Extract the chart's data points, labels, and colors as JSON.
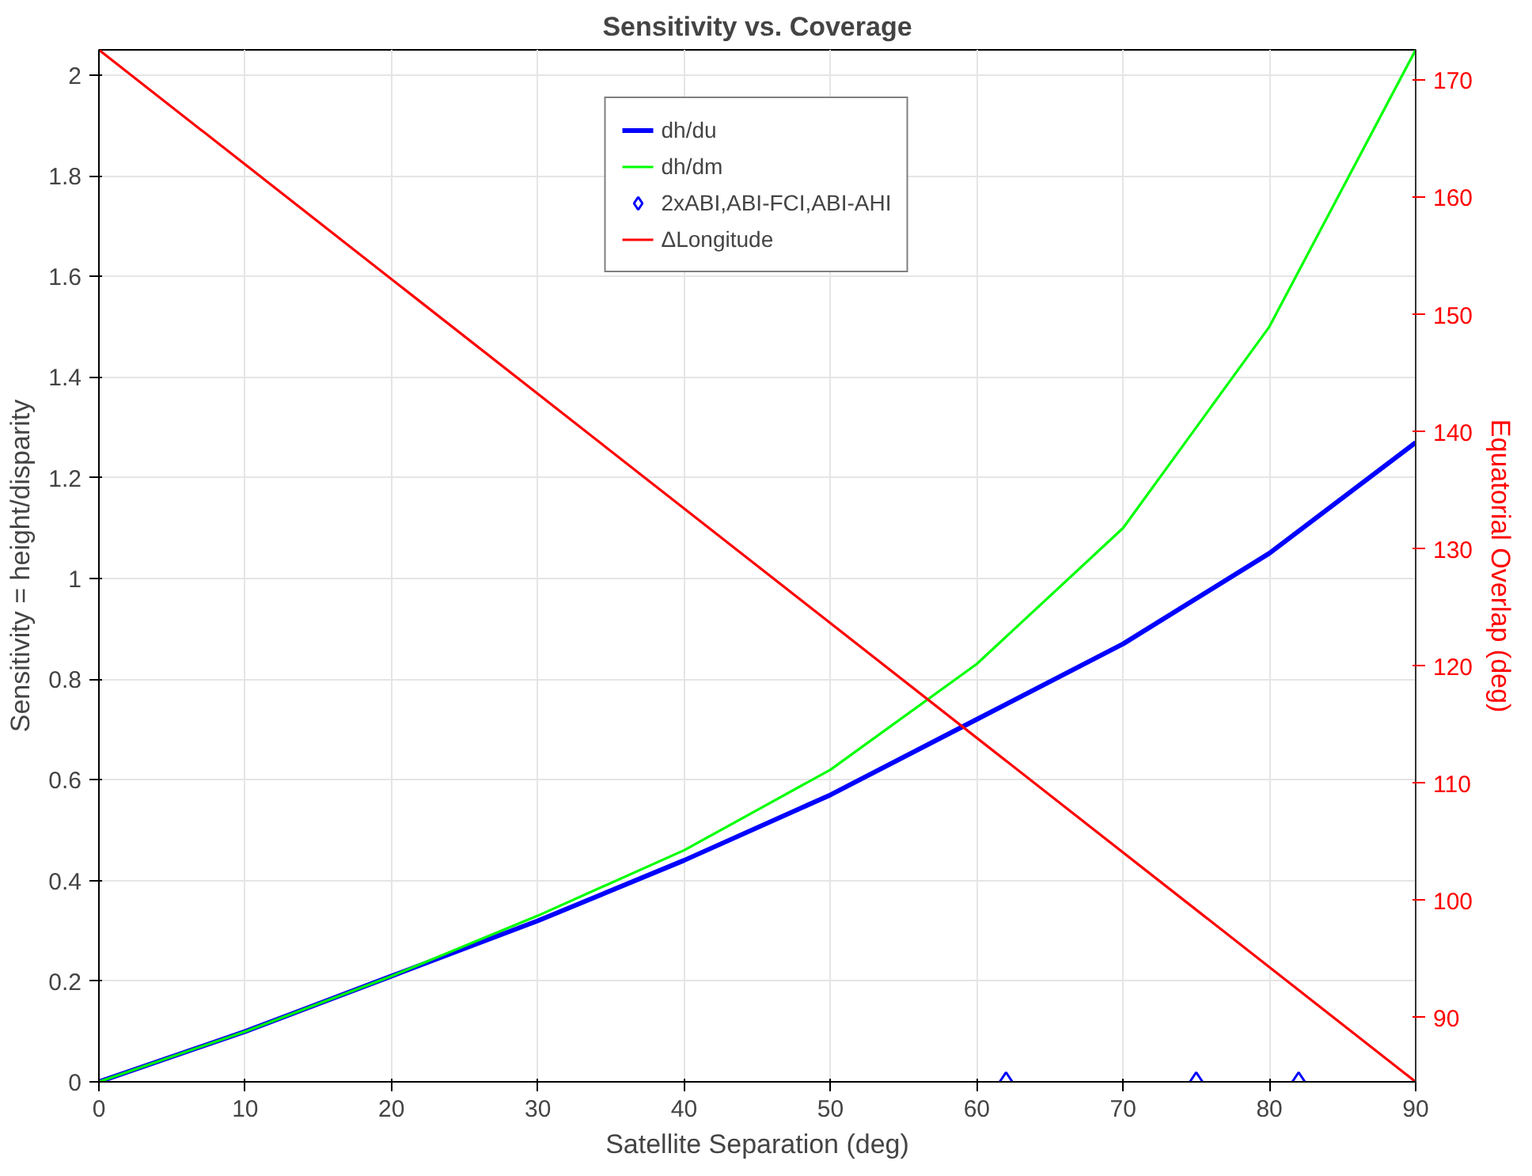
{
  "chart_data": {
    "type": "line",
    "title": "Sensitivity vs. Coverage",
    "xlabel": "Satellite Separation (deg)",
    "ylabel": "Sensitivity = height/disparity",
    "y2label": "Equatorial Overlap (deg)",
    "xlim": [
      0,
      90
    ],
    "xticks": [
      0,
      10,
      20,
      30,
      40,
      50,
      60,
      70,
      80,
      90
    ],
    "ylim": [
      0,
      2.05
    ],
    "yticks": [
      0,
      0.2,
      0.4,
      0.6,
      0.8,
      1,
      1.2,
      1.4,
      1.6,
      1.8,
      2
    ],
    "y2lim": [
      84.5,
      172.6
    ],
    "y2ticks": [
      90,
      100,
      110,
      120,
      130,
      140,
      150,
      160,
      170
    ],
    "grid": true,
    "legend": "top",
    "series": [
      {
        "name": "dh/du",
        "color": "#0000ff",
        "x": [
          0,
          10,
          20,
          30,
          40,
          50,
          60,
          70,
          80,
          90
        ],
        "values": [
          0,
          0.1,
          0.21,
          0.32,
          0.44,
          0.57,
          0.72,
          0.87,
          1.05,
          1.27
        ]
      },
      {
        "name": "dh/dm",
        "color": "#00ff00",
        "x": [
          0,
          10,
          20,
          30,
          40,
          50,
          60,
          70,
          80,
          90
        ],
        "values": [
          0,
          0.1,
          0.21,
          0.33,
          0.46,
          0.62,
          0.83,
          1.1,
          1.5,
          2.05
        ]
      },
      {
        "name": "2xABI,ABI-FCI,ABI-AHI",
        "color": "#0000ff",
        "type": "scatter",
        "marker": "diamond",
        "x": [
          62,
          75,
          82
        ],
        "values": [
          0,
          0,
          0
        ]
      },
      {
        "name": "ΔLongitude",
        "color": "#ff0000",
        "type": "line",
        "axis": "y2",
        "x": [
          0,
          90
        ],
        "values": [
          172.6,
          84.5
        ]
      }
    ]
  }
}
